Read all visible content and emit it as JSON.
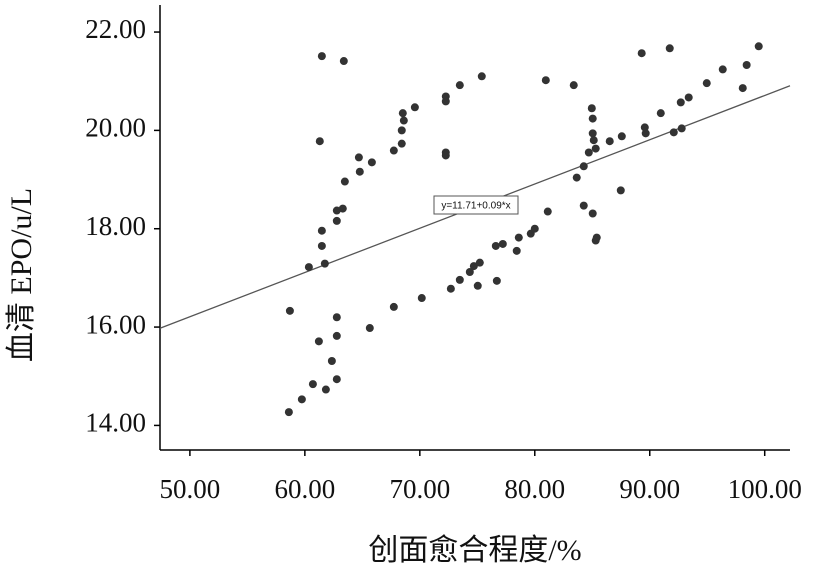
{
  "chart_data": {
    "type": "scatter",
    "x_label": "创面愈合程度/%",
    "y_label": "血清 EPO/u/L",
    "x": [
      61.48,
      63.39,
      61.3,
      58.7,
      60.35,
      61.74,
      61.48,
      61.48,
      63.48,
      62.78,
      63.3,
      62.78,
      64.7,
      64.78,
      65.83,
      62.78,
      62.78,
      61.22,
      62.35,
      60.7,
      61.83,
      62.78,
      59.74,
      58.61,
      65.65,
      67.74,
      70.17,
      67.74,
      68.43,
      68.43,
      68.61,
      68.52,
      69.57,
      72.26,
      72.26,
      72.26,
      72.26,
      73.48,
      75.39,
      72.7,
      73.48,
      74.35,
      74.7,
      75.04,
      75.22,
      76.7,
      76.61,
      77.22,
      78.43,
      78.61,
      79.65,
      80.0,
      81.13,
      80.96,
      83.39,
      83.65,
      84.26,
      84.26,
      84.7,
      85.04,
      84.96,
      85.04,
      85.04,
      85.13,
      85.3,
      85.39,
      85.3,
      86.52,
      87.48,
      87.57,
      89.3,
      89.65,
      89.57,
      91.74,
      90.96,
      92.09,
      92.7,
      92.78,
      93.39,
      94.96,
      96.35,
      98.09,
      98.43,
      99.48
    ],
    "values": [
      21.51,
      21.41,
      19.78,
      16.33,
      17.22,
      17.29,
      17.65,
      17.96,
      18.96,
      18.16,
      18.41,
      18.37,
      19.45,
      19.16,
      19.35,
      16.2,
      15.82,
      15.71,
      15.31,
      14.84,
      14.73,
      14.94,
      14.53,
      14.27,
      15.98,
      16.41,
      16.59,
      19.59,
      19.73,
      20.0,
      20.2,
      20.35,
      20.47,
      20.69,
      20.59,
      19.55,
      19.49,
      20.92,
      21.1,
      16.78,
      16.96,
      17.12,
      17.24,
      16.84,
      17.31,
      16.94,
      17.65,
      17.69,
      17.55,
      17.82,
      17.9,
      18.0,
      18.35,
      21.02,
      20.92,
      19.04,
      19.27,
      18.47,
      19.55,
      18.31,
      20.45,
      20.24,
      19.94,
      19.8,
      19.63,
      17.82,
      17.76,
      19.78,
      18.78,
      19.88,
      21.57,
      19.94,
      20.06,
      21.67,
      20.35,
      19.96,
      20.57,
      20.04,
      20.67,
      20.96,
      21.24,
      20.86,
      21.33,
      21.71
    ],
    "color": "#333333",
    "fit_line": {
      "intercept": 11.71,
      "slope": 0.09,
      "label": "y=11.71+0.09*x",
      "color": "#555555"
    },
    "xlim": [
      47.4,
      102.2
    ],
    "ylim": [
      13.5,
      22.55
    ],
    "xticks": [
      {
        "value": 50,
        "label": "50.00"
      },
      {
        "value": 60,
        "label": "60.00"
      },
      {
        "value": 70,
        "label": "70.00"
      },
      {
        "value": 80,
        "label": "80.00"
      },
      {
        "value": 90,
        "label": "90.00"
      },
      {
        "value": 100,
        "label": "100.00"
      }
    ],
    "yticks": [
      {
        "value": 14,
        "label": "14.00"
      },
      {
        "value": 16,
        "label": "16.00"
      },
      {
        "value": 18,
        "label": "18.00"
      },
      {
        "value": 20,
        "label": "20.00"
      },
      {
        "value": 22,
        "label": "22.00"
      }
    ]
  }
}
